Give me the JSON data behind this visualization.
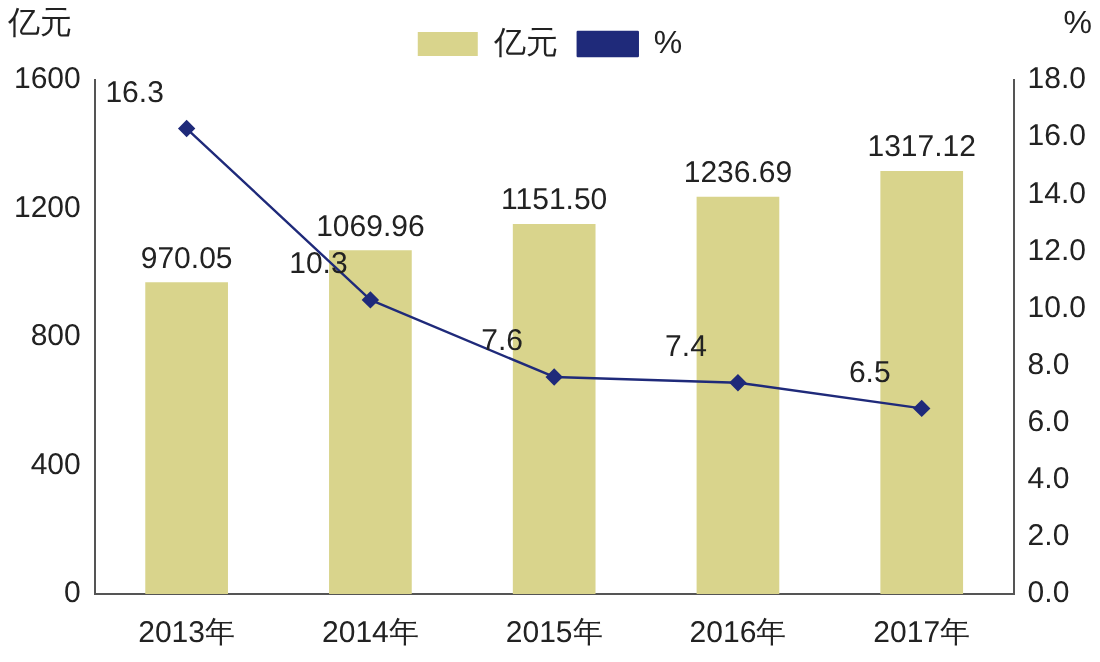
{
  "chart_data": {
    "type": "bar",
    "categories": [
      "2013年",
      "2014年",
      "2015年",
      "2016年",
      "2017年"
    ],
    "ylabel": "亿元",
    "y2label": "%",
    "series": [
      {
        "name": "亿元",
        "color": "#d9d48c",
        "values": [
          970.05,
          1069.96,
          1151.5,
          1236.69,
          1317.12
        ],
        "value_labels": [
          "970.05",
          "1069.96",
          "1151.50",
          "1236.69",
          "1317.12"
        ]
      },
      {
        "name": "%",
        "type": "line",
        "axis": "y2",
        "color": "#1f2a7a",
        "marker": "diamond",
        "values": [
          16.3,
          10.3,
          7.6,
          7.4,
          6.5
        ],
        "value_labels": [
          "16.3",
          "10.3",
          "7.6",
          "7.4",
          "6.5"
        ]
      }
    ],
    "ylim": [
      0,
      1600
    ],
    "yticks": [
      0,
      400,
      800,
      1200,
      1600
    ],
    "y2lim": [
      0,
      18
    ],
    "y2ticks": [
      {
        "value": 0,
        "label": "0.0"
      },
      {
        "value": 2,
        "label": "2.0"
      },
      {
        "value": 4,
        "label": "4.0"
      },
      {
        "value": 6,
        "label": "6.0"
      },
      {
        "value": 8,
        "label": "8.0"
      },
      {
        "value": 10,
        "label": "10.0"
      },
      {
        "value": 12,
        "label": "12.0"
      },
      {
        "value": 14,
        "label": "14.0"
      },
      {
        "value": 16,
        "label": "16.0"
      },
      {
        "value": 18,
        "label": "18.0"
      }
    ],
    "grid": false,
    "legend": "top"
  }
}
